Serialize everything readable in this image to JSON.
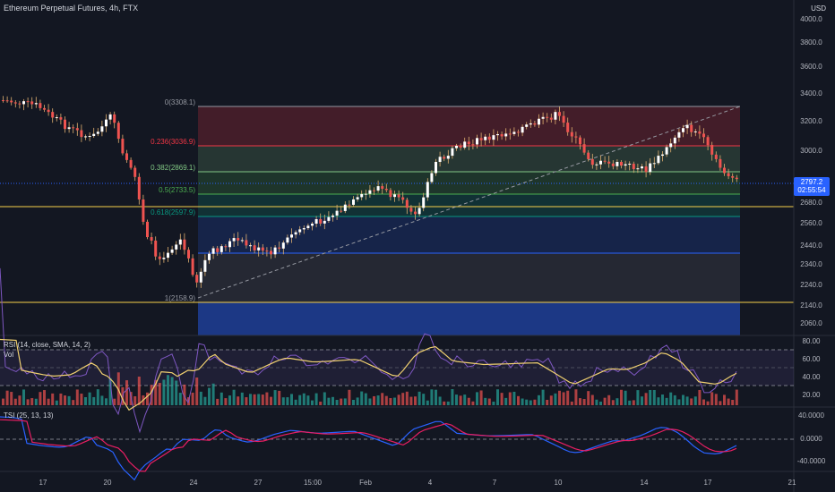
{
  "header": {
    "title": "Ethereum Perpetual Futures, 4h, FTX",
    "currency": "USD"
  },
  "price_axis": [
    "4000.0",
    "3800.0",
    "3600.0",
    "3400.0",
    "3200.0",
    "3000.0",
    "2680.0",
    "2560.0",
    "2440.0",
    "2340.0",
    "2240.0",
    "2140.0",
    "2060.0"
  ],
  "last_price": {
    "price": "2797.2",
    "countdown": "02:55:54"
  },
  "fib_levels": [
    {
      "label": "0(3308.1)",
      "color": "#9598a1"
    },
    {
      "label": "0.236(3036.9)",
      "color": "#f23645"
    },
    {
      "label": "0.382(2869.1)",
      "color": "#81c784"
    },
    {
      "label": "0.5(2733.5)",
      "color": "#4caf50"
    },
    {
      "label": "0.618(2597.9)",
      "color": "#089981"
    },
    {
      "label": "1(2158.9)",
      "color": "#9598a1"
    }
  ],
  "rsi": {
    "title": "RSI (14, close, SMA, 14, 2)",
    "vol_label": "Vol",
    "axis": [
      "80.00",
      "60.00",
      "40.00",
      "20.00"
    ]
  },
  "tsi": {
    "title": "TSI (25, 13, 13)",
    "axis": [
      "40.0000",
      "0.0000",
      "-40.0000"
    ]
  },
  "time_axis": [
    "17",
    "20",
    "24",
    "27",
    "15:00",
    "Feb",
    "4",
    "7",
    "10",
    "14",
    "17",
    "21"
  ],
  "colors": {
    "bg": "#131722",
    "up": "#ffffff",
    "down": "#ef5350",
    "accent": "#2962ff"
  }
}
